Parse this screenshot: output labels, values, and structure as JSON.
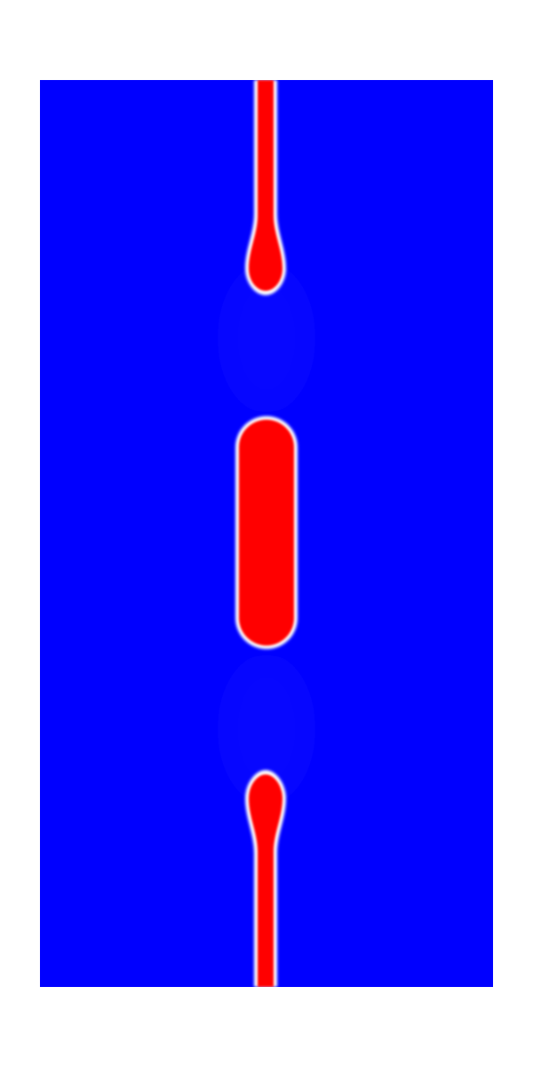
{
  "figure": {
    "background_color": "#ffffff",
    "domain_color": "#0000ff",
    "phase_color": "#ff0000",
    "interface_color": "#ffffff",
    "halo_color": "#1010ff"
  },
  "phase_field": {
    "shapes": [
      "upper-filament",
      "central-droplet",
      "lower-filament"
    ]
  }
}
